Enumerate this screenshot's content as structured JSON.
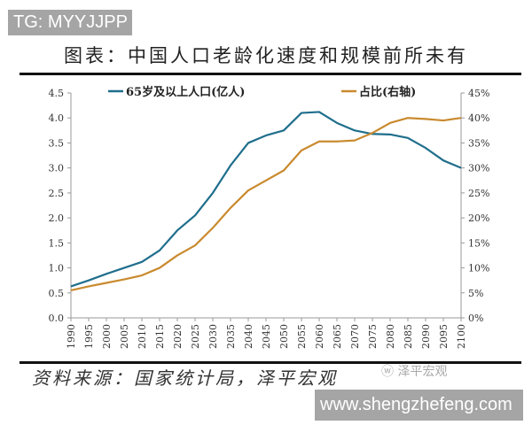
{
  "watermark_top": "TG: MYYJJPP",
  "watermark_url": "www.shengzhefeng.com",
  "watermark_logo": "泽平宏观",
  "title": "图表：中国人口老龄化速度和规模前所未有",
  "source": "资料来源：国家统计局，泽平宏观",
  "chart_data": {
    "type": "line",
    "x": [
      1990,
      1995,
      2000,
      2005,
      2010,
      2015,
      2020,
      2025,
      2030,
      2035,
      2040,
      2045,
      2050,
      2055,
      2060,
      2065,
      2070,
      2075,
      2080,
      2085,
      2090,
      2095,
      2100
    ],
    "x_tick_labels": [
      "1990",
      "1995",
      "2000",
      "2005",
      "2010",
      "2015",
      "2020",
      "2025",
      "2030",
      "2035",
      "2040",
      "2045",
      "2050",
      "2055",
      "2060",
      "2065",
      "2070",
      "2075",
      "2080",
      "2085",
      "2090",
      "2095",
      "2100"
    ],
    "y_left": {
      "range": [
        0,
        4.5
      ],
      "ticks": [
        "0.0",
        "0.5",
        "1.0",
        "1.5",
        "2.0",
        "2.5",
        "3.0",
        "3.5",
        "4.0",
        "4.5"
      ]
    },
    "y_right": {
      "range": [
        0,
        45
      ],
      "ticks": [
        "0%",
        "5%",
        "10%",
        "15%",
        "20%",
        "25%",
        "30%",
        "35%",
        "40%",
        "45%"
      ]
    },
    "grid": false,
    "legend_position": "top",
    "series": [
      {
        "name": "65岁及以上人口(亿人)",
        "axis": "left",
        "color": "#1f6e8c",
        "values": [
          0.63,
          0.75,
          0.88,
          1.0,
          1.12,
          1.35,
          1.75,
          2.05,
          2.5,
          3.05,
          3.5,
          3.65,
          3.75,
          4.1,
          4.12,
          3.9,
          3.75,
          3.68,
          3.67,
          3.6,
          3.4,
          3.15,
          3.0
        ]
      },
      {
        "name": "占比(右轴)",
        "axis": "right",
        "color": "#c98a2e",
        "values": [
          5.5,
          6.3,
          7.0,
          7.7,
          8.5,
          10,
          12.5,
          14.5,
          18,
          22,
          25.5,
          27.5,
          29.5,
          33.5,
          35.3,
          35.3,
          35.5,
          37,
          39,
          40,
          39.8,
          39.5,
          40
        ]
      }
    ]
  }
}
